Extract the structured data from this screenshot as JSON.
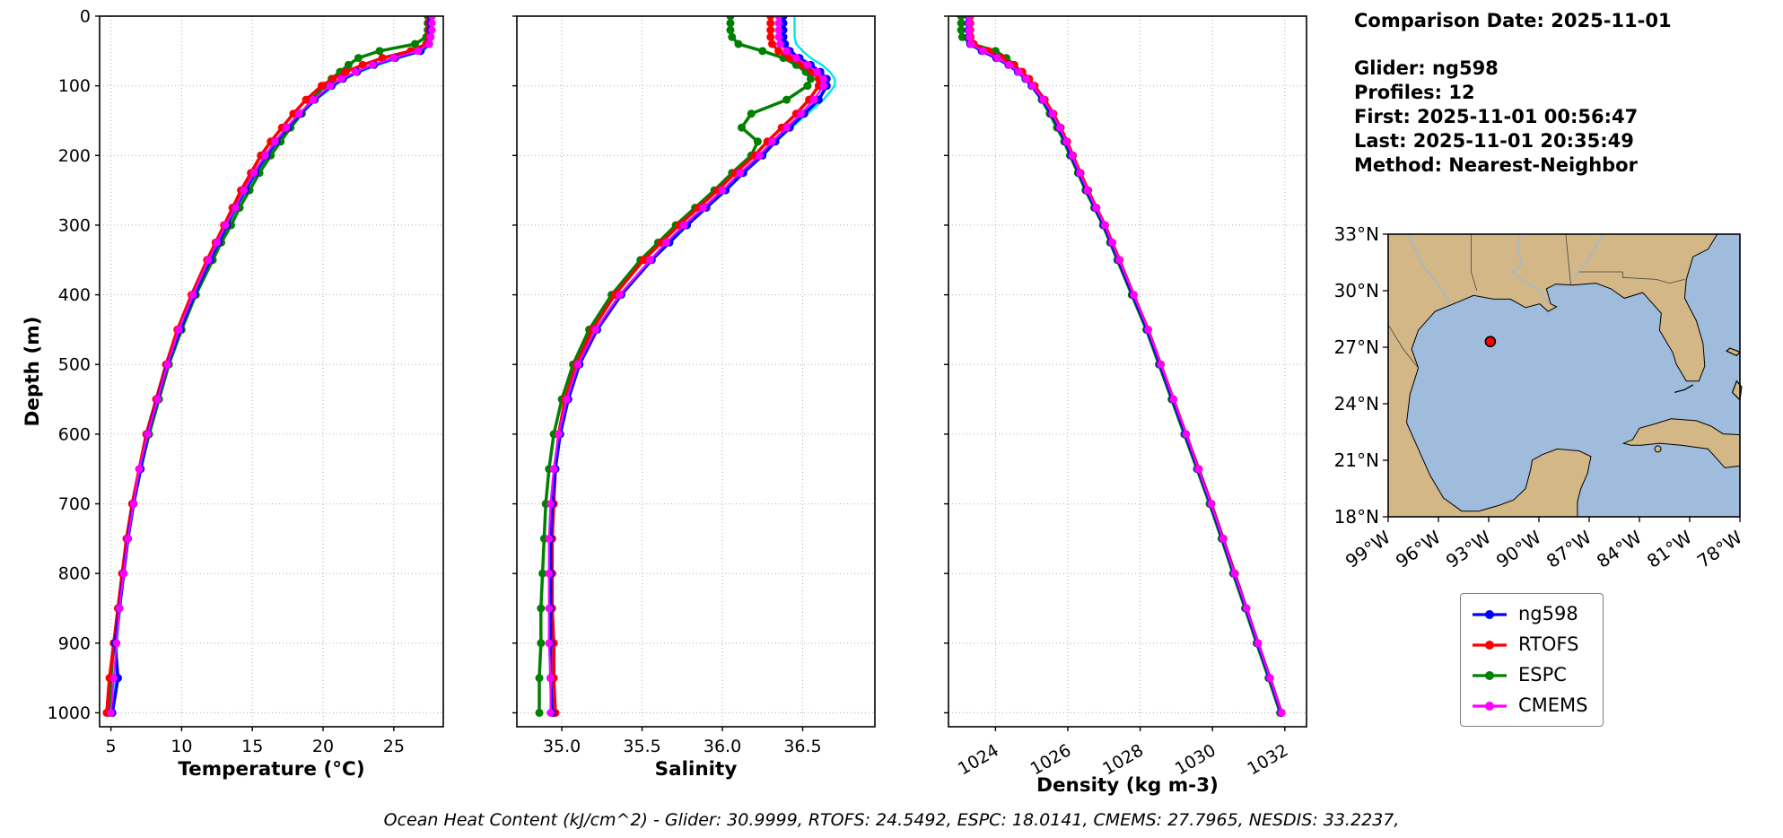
{
  "info": {
    "comparison_date": "Comparison Date: 2025-11-01",
    "glider": "Glider: ng598",
    "profiles": "Profiles: 12",
    "first": "First: 2025-11-01 00:56:47",
    "last": "Last: 2025-11-01 20:35:49",
    "method": "Method: Nearest-Neighbor"
  },
  "caption": "Ocean Heat Content (kJ/cm^2) - Glider: 30.9999,  RTOFS: 24.5492,  ESPC: 18.0141,  CMEMS: 27.7965,  NESDIS: 33.2237,",
  "legend": {
    "items": [
      {
        "label": "ng598",
        "color": "#0000ff"
      },
      {
        "label": "RTOFS",
        "color": "#ff0000"
      },
      {
        "label": "ESPC",
        "color": "#008000"
      },
      {
        "label": "CMEMS",
        "color": "#ff00ff"
      }
    ]
  },
  "map": {
    "extent": {
      "lon_min": -99,
      "lon_max": -78,
      "lat_min": 18,
      "lat_max": 33
    },
    "lat_ticks": [
      "33°N",
      "30°N",
      "27°N",
      "24°N",
      "21°N",
      "18°N"
    ],
    "lat_tick_values": [
      33,
      30,
      27,
      24,
      21,
      18
    ],
    "lon_ticks": [
      "99°W",
      "96°W",
      "93°W",
      "90°W",
      "87°W",
      "84°W",
      "81°W",
      "78°W"
    ],
    "lon_tick_values": [
      -99,
      -96,
      -93,
      -90,
      -87,
      -84,
      -81,
      -78
    ],
    "ocean_color": "#9fbcdc",
    "land_color": "#d3b787",
    "marker": {
      "lon": -92.9,
      "lat": 27.3,
      "color": "#ff0000"
    }
  },
  "chart_data": {
    "type": "line",
    "orientation": "vertical-profile",
    "ylabel": "Depth (m)",
    "ylim": [
      0,
      1000
    ],
    "yticks": [
      0,
      100,
      200,
      300,
      400,
      500,
      600,
      700,
      800,
      900,
      1000
    ],
    "grid": true,
    "depths": [
      0,
      10,
      20,
      30,
      40,
      50,
      60,
      70,
      80,
      90,
      100,
      120,
      140,
      160,
      180,
      200,
      225,
      250,
      275,
      300,
      325,
      350,
      400,
      450,
      500,
      550,
      600,
      650,
      700,
      750,
      800,
      850,
      900,
      950,
      1000
    ],
    "plots": [
      {
        "id": "temperature",
        "xlabel": "Temperature (°C)",
        "xlim": [
          4.2,
          28.5
        ],
        "xticks": [
          5,
          10,
          15,
          20,
          25
        ],
        "xtick_labels": [
          "5",
          "10",
          "15",
          "20",
          "25"
        ],
        "tick_rotation": 0,
        "series": [
          {
            "name": "unlabeled",
            "color": "#00e5ee",
            "values": [
              27.6,
              27.6,
              27.6,
              27.6,
              27.55,
              27.1,
              25.4,
              23.9,
              22.6,
              21.6,
              20.8,
              19.5,
              18.5,
              17.6,
              16.8,
              16.1,
              15.3,
              14.6,
              13.9,
              13.3,
              12.7,
              12.1,
              11.0,
              10.0,
              9.1,
              8.35,
              7.65,
              7.15,
              6.65,
              6.25,
              5.95,
              5.65,
              5.45,
              5.35,
              5.15
            ]
          },
          {
            "name": "ESPC",
            "color": "#008000",
            "values": [
              27.4,
              27.4,
              27.4,
              27.3,
              26.5,
              24.0,
              22.5,
              21.8,
              21.2,
              20.6,
              20.1,
              19.2,
              18.5,
              17.7,
              17.0,
              16.3,
              15.5,
              14.8,
              14.1,
              13.5,
              12.8,
              12.2,
              11.0,
              10.0,
              9.1,
              8.4,
              7.7,
              7.1,
              6.6,
              6.2,
              5.8,
              5.5,
              5.2,
              5.0,
              4.9
            ]
          },
          {
            "name": "RTOFS",
            "color": "#ff0000",
            "values": [
              27.5,
              27.5,
              27.5,
              27.5,
              27.3,
              26.2,
              24.2,
              22.8,
              21.6,
              20.7,
              19.9,
              18.8,
              17.9,
              17.1,
              16.3,
              15.6,
              14.9,
              14.2,
              13.6,
              13.0,
              12.4,
              11.8,
              10.7,
              9.7,
              8.9,
              8.2,
              7.5,
              7.0,
              6.5,
              6.1,
              5.8,
              5.5,
              5.2,
              4.9,
              4.7
            ]
          },
          {
            "name": "ng598",
            "color": "#0000ff",
            "values": [
              27.6,
              27.6,
              27.6,
              27.6,
              27.5,
              26.9,
              25.1,
              23.6,
              22.4,
              21.4,
              20.6,
              19.4,
              18.4,
              17.5,
              16.7,
              16.0,
              15.2,
              14.5,
              13.8,
              13.2,
              12.6,
              12.0,
              10.9,
              9.9,
              9.0,
              8.3,
              7.6,
              7.1,
              6.6,
              6.2,
              5.9,
              5.6,
              5.3,
              5.5,
              5.1
            ]
          },
          {
            "name": "CMEMS",
            "color": "#ff00ff",
            "values": [
              27.7,
              27.7,
              27.7,
              27.6,
              27.5,
              26.7,
              25.0,
              23.5,
              22.3,
              21.3,
              20.5,
              19.3,
              18.3,
              17.4,
              16.6,
              15.9,
              15.1,
              14.4,
              13.8,
              13.1,
              12.5,
              11.9,
              10.8,
              9.8,
              9.0,
              8.3,
              7.6,
              7.0,
              6.6,
              6.2,
              5.9,
              5.6,
              5.4,
              5.2,
              5.0
            ]
          }
        ]
      },
      {
        "id": "salinity",
        "xlabel": "Salinity",
        "xlim": [
          34.72,
          36.95
        ],
        "xticks": [
          35.0,
          35.5,
          36.0,
          36.5
        ],
        "xtick_labels": [
          "35.0",
          "35.5",
          "36.0",
          "36.5"
        ],
        "tick_rotation": 0,
        "series": [
          {
            "name": "unlabeled",
            "color": "#00e5ee",
            "values": [
              36.45,
              36.45,
              36.45,
              36.45,
              36.46,
              36.5,
              36.55,
              36.62,
              36.67,
              36.7,
              36.7,
              36.63,
              36.53,
              36.43,
              36.33,
              36.24,
              36.12,
              36.01,
              35.89,
              35.77,
              35.66,
              35.55,
              35.36,
              35.21,
              35.1,
              35.03,
              34.98,
              34.95,
              34.93,
              34.92,
              34.92,
              34.92,
              34.92,
              34.93,
              34.93
            ]
          },
          {
            "name": "ESPC",
            "color": "#008000",
            "values": [
              36.05,
              36.05,
              36.05,
              36.06,
              36.1,
              36.25,
              36.38,
              36.46,
              36.52,
              36.55,
              36.53,
              36.4,
              36.18,
              36.12,
              36.22,
              36.18,
              36.06,
              35.95,
              35.83,
              35.71,
              35.6,
              35.49,
              35.31,
              35.17,
              35.07,
              35.0,
              34.95,
              34.92,
              34.9,
              34.89,
              34.88,
              34.87,
              34.87,
              34.86,
              34.86
            ]
          },
          {
            "name": "RTOFS",
            "color": "#ff0000",
            "values": [
              36.3,
              36.3,
              36.3,
              36.3,
              36.31,
              36.35,
              36.42,
              36.5,
              36.56,
              36.6,
              36.6,
              36.54,
              36.46,
              36.37,
              36.28,
              36.2,
              36.08,
              35.97,
              35.85,
              35.73,
              35.62,
              35.51,
              35.33,
              35.19,
              35.09,
              35.02,
              34.98,
              34.96,
              34.95,
              34.94,
              34.94,
              34.94,
              34.95,
              34.95,
              34.96
            ]
          },
          {
            "name": "ng598",
            "color": "#0000ff",
            "values": [
              36.38,
              36.38,
              36.38,
              36.38,
              36.39,
              36.42,
              36.48,
              36.55,
              36.61,
              36.65,
              36.65,
              36.6,
              36.51,
              36.42,
              36.33,
              36.25,
              36.13,
              36.02,
              35.9,
              35.78,
              35.67,
              35.56,
              35.37,
              35.22,
              35.11,
              35.04,
              34.99,
              34.96,
              34.94,
              34.93,
              34.93,
              34.93,
              34.93,
              34.93,
              34.94
            ]
          },
          {
            "name": "CMEMS",
            "color": "#ff00ff",
            "values": [
              36.35,
              36.35,
              36.35,
              36.35,
              36.36,
              36.4,
              36.46,
              36.53,
              36.59,
              36.63,
              36.63,
              36.57,
              36.49,
              36.4,
              36.31,
              36.23,
              36.11,
              36.0,
              35.88,
              35.76,
              35.65,
              35.55,
              35.36,
              35.21,
              35.1,
              35.03,
              34.98,
              34.95,
              34.93,
              34.92,
              34.92,
              34.92,
              34.92,
              34.93,
              34.93
            ]
          }
        ]
      },
      {
        "id": "density",
        "xlabel": "Density (kg m-3)",
        "xlim": [
          1022.7,
          1032.6
        ],
        "xticks": [
          1024,
          1026,
          1028,
          1030,
          1032
        ],
        "xtick_labels": [
          "1024",
          "1026",
          "1028",
          "1030",
          "1032"
        ],
        "tick_rotation": 30,
        "series": [
          {
            "name": "unlabeled",
            "color": "#00e5ee",
            "values": [
              1023.23,
              1023.23,
              1023.23,
              1023.24,
              1023.28,
              1023.6,
              1024.0,
              1024.34,
              1024.6,
              1024.81,
              1024.98,
              1025.28,
              1025.53,
              1025.74,
              1025.92,
              1026.08,
              1026.29,
              1026.5,
              1026.74,
              1026.98,
              1027.18,
              1027.38,
              1027.78,
              1028.18,
              1028.53,
              1028.88,
              1029.23,
              1029.58,
              1029.93,
              1030.26,
              1030.58,
              1030.91,
              1031.23,
              1031.56,
              1031.88
            ]
          },
          {
            "name": "ESPC",
            "color": "#008000",
            "values": [
              1023.05,
              1023.05,
              1023.05,
              1023.08,
              1023.35,
              1024.0,
              1024.3,
              1024.52,
              1024.7,
              1024.85,
              1025.0,
              1025.28,
              1025.5,
              1025.7,
              1025.9,
              1026.06,
              1026.28,
              1026.49,
              1026.73,
              1026.97,
              1027.17,
              1027.37,
              1027.77,
              1028.17,
              1028.52,
              1028.87,
              1029.22,
              1029.57,
              1029.92,
              1030.25,
              1030.57,
              1030.9,
              1031.22,
              1031.55,
              1031.87
            ]
          },
          {
            "name": "RTOFS",
            "color": "#ff0000",
            "values": [
              1023.3,
              1023.3,
              1023.3,
              1023.31,
              1023.4,
              1023.8,
              1024.18,
              1024.5,
              1024.74,
              1024.93,
              1025.08,
              1025.36,
              1025.6,
              1025.8,
              1025.98,
              1026.14,
              1026.35,
              1026.56,
              1026.79,
              1027.03,
              1027.23,
              1027.43,
              1027.82,
              1028.22,
              1028.57,
              1028.92,
              1029.27,
              1029.62,
              1029.97,
              1030.3,
              1030.62,
              1030.94,
              1031.26,
              1031.59,
              1031.91
            ]
          },
          {
            "name": "ng598",
            "color": "#0000ff",
            "values": [
              1023.25,
              1023.25,
              1023.25,
              1023.26,
              1023.3,
              1023.62,
              1024.02,
              1024.36,
              1024.62,
              1024.83,
              1025.0,
              1025.3,
              1025.55,
              1025.76,
              1025.94,
              1026.1,
              1026.31,
              1026.52,
              1026.76,
              1027.0,
              1027.2,
              1027.4,
              1027.8,
              1028.2,
              1028.55,
              1028.9,
              1029.25,
              1029.6,
              1029.95,
              1030.28,
              1030.6,
              1030.93,
              1031.25,
              1031.58,
              1031.9
            ]
          },
          {
            "name": "CMEMS",
            "color": "#ff00ff",
            "values": [
              1023.27,
              1023.27,
              1023.27,
              1023.28,
              1023.32,
              1023.65,
              1024.05,
              1024.38,
              1024.64,
              1024.85,
              1025.02,
              1025.32,
              1025.57,
              1025.78,
              1025.96,
              1026.12,
              1026.33,
              1026.54,
              1026.78,
              1027.02,
              1027.22,
              1027.42,
              1027.82,
              1028.22,
              1028.57,
              1028.92,
              1029.27,
              1029.61,
              1029.96,
              1030.29,
              1030.61,
              1030.94,
              1031.26,
              1031.59,
              1031.91
            ]
          }
        ]
      }
    ]
  }
}
